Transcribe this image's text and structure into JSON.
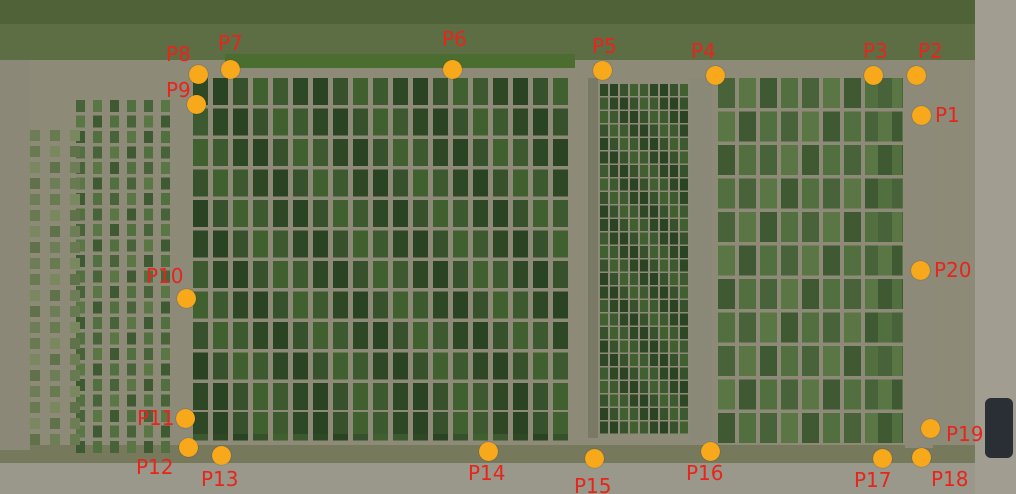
{
  "image": {
    "description_free": true,
    "colors": {
      "soil": "#8f8b78",
      "grass": "#5c7042",
      "plot_dark": "#2f4a26",
      "plot_mid": "#3f5a30",
      "path": "#7c7b68",
      "marker": "#f7a81b",
      "label": "#e8241c"
    }
  },
  "markers": [
    {
      "id": "p1",
      "label": "P1"
    },
    {
      "id": "p2",
      "label": "P2"
    },
    {
      "id": "p3",
      "label": "P3"
    },
    {
      "id": "p4",
      "label": "P4"
    },
    {
      "id": "p5",
      "label": "P5"
    },
    {
      "id": "p6",
      "label": "P6"
    },
    {
      "id": "p7",
      "label": "P7"
    },
    {
      "id": "p8",
      "label": "P8"
    },
    {
      "id": "p9",
      "label": "P9"
    },
    {
      "id": "p10",
      "label": "P10"
    },
    {
      "id": "p11",
      "label": "P11"
    },
    {
      "id": "p12",
      "label": "P12"
    },
    {
      "id": "p13",
      "label": "P13"
    },
    {
      "id": "p14",
      "label": "P14"
    },
    {
      "id": "p15",
      "label": "P15"
    },
    {
      "id": "p16",
      "label": "P16"
    },
    {
      "id": "p17",
      "label": "P17"
    },
    {
      "id": "p18",
      "label": "P18"
    },
    {
      "id": "p19",
      "label": "P19"
    },
    {
      "id": "p20",
      "label": "P20"
    }
  ]
}
